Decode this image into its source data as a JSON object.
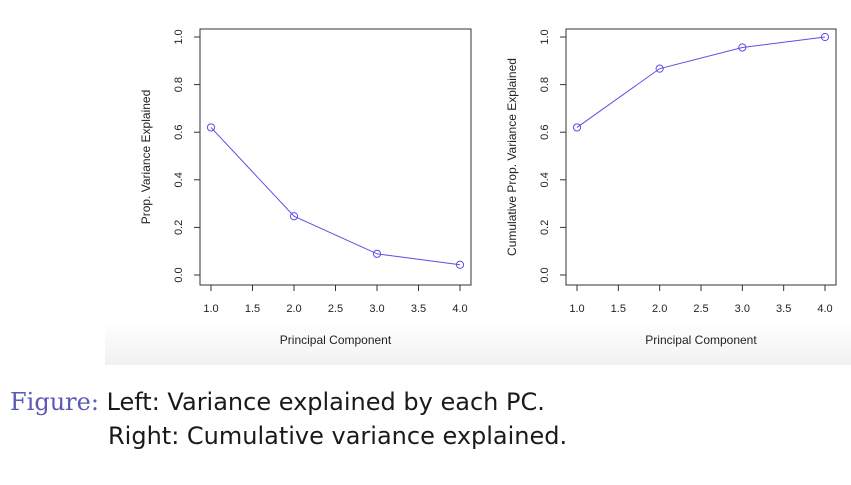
{
  "chart_data": [
    {
      "type": "line",
      "x": [
        1.0,
        2.0,
        3.0,
        4.0
      ],
      "series": [
        {
          "values": [
            0.62,
            0.247,
            0.089,
            0.043
          ]
        }
      ],
      "xlabel": "Principal Component",
      "ylabel": "Prop. Variance Explained",
      "xlim": [
        1.0,
        4.0
      ],
      "ylim": [
        0.0,
        1.0
      ],
      "xticks": [
        "1.0",
        "1.5",
        "2.0",
        "2.5",
        "3.0",
        "3.5",
        "4.0"
      ],
      "yticks": [
        "0.0",
        "0.2",
        "0.4",
        "0.6",
        "0.8",
        "1.0"
      ],
      "markers": "open-circle",
      "line_color": "#5b4fe6",
      "grid": false
    },
    {
      "type": "line",
      "x": [
        1.0,
        2.0,
        3.0,
        4.0
      ],
      "series": [
        {
          "values": [
            0.62,
            0.867,
            0.956,
            1.0
          ]
        }
      ],
      "xlabel": "Principal Component",
      "ylabel": "Cumulative Prop. Variance Explained",
      "xlim": [
        1.0,
        4.0
      ],
      "ylim": [
        0.0,
        1.0
      ],
      "xticks": [
        "1.0",
        "1.5",
        "2.0",
        "2.5",
        "3.0",
        "3.5",
        "4.0"
      ],
      "yticks": [
        "0.0",
        "0.2",
        "0.4",
        "0.6",
        "0.8",
        "1.0"
      ],
      "markers": "open-circle",
      "line_color": "#5b4fe6",
      "grid": false
    }
  ],
  "caption": {
    "label": "Figure:",
    "line1": "Left: Variance explained by each PC.",
    "line2": "Right: Cumulative variance explained."
  }
}
